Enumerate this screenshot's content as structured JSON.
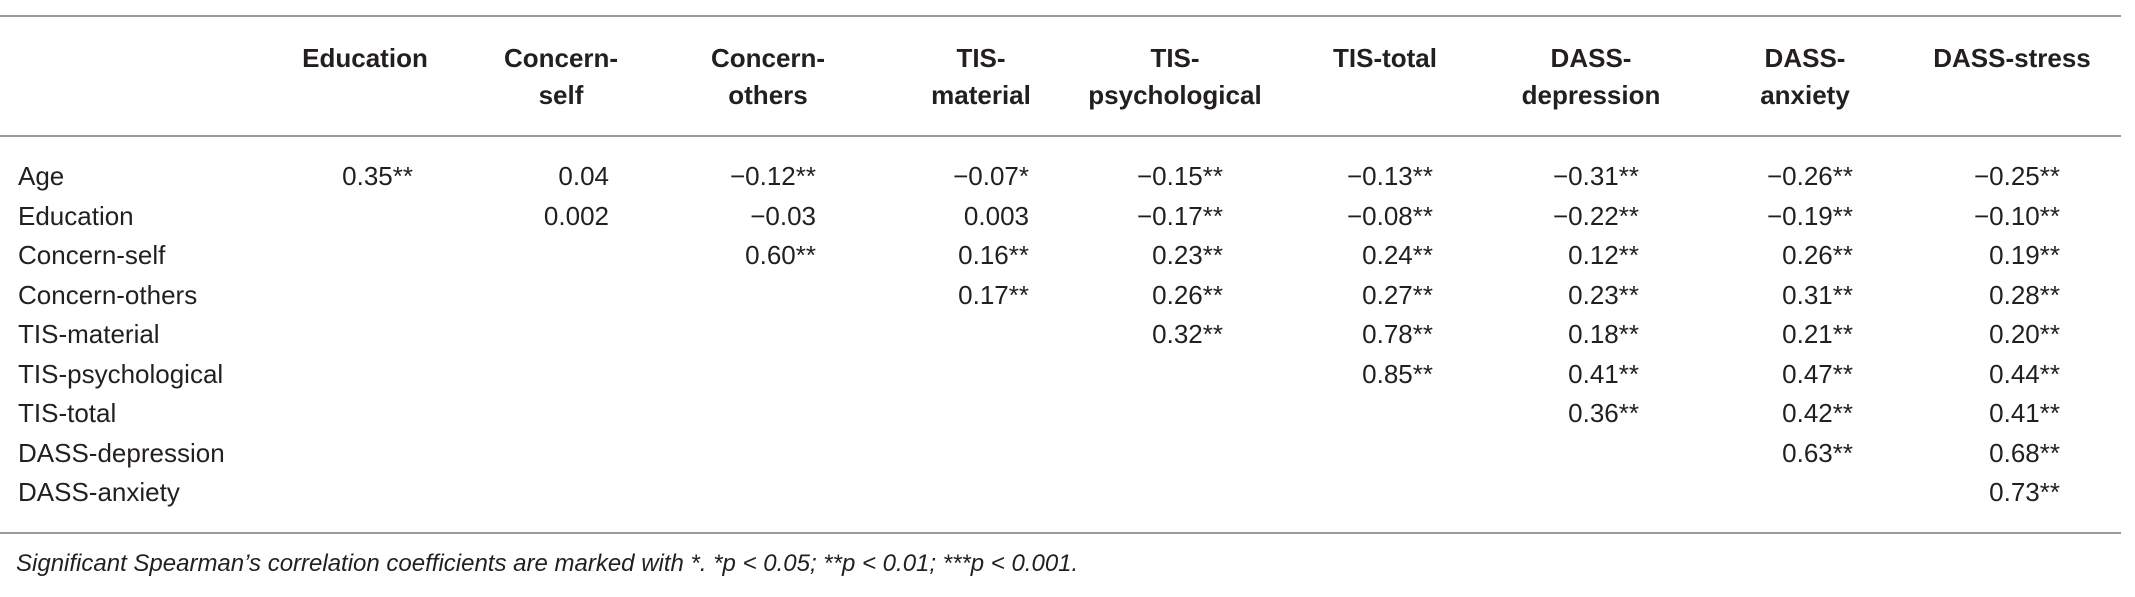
{
  "table": {
    "columns": [
      [
        "Education"
      ],
      [
        "Concern-",
        "self"
      ],
      [
        "Concern-",
        "others"
      ],
      [
        "TIS-",
        "material"
      ],
      [
        "TIS-",
        "psychological"
      ],
      [
        "TIS-total"
      ],
      [
        "DASS-",
        "depression"
      ],
      [
        "DASS-",
        "anxiety"
      ],
      [
        "DASS-stress"
      ]
    ],
    "rows": [
      {
        "label": "Age",
        "cells": [
          "0.35**",
          "0.04",
          "−0.12**",
          "−0.07*",
          "−0.15**",
          "−0.13**",
          "−0.31**",
          "−0.26**",
          "−0.25**"
        ]
      },
      {
        "label": "Education",
        "cells": [
          "0.002",
          "−0.03",
          "0.003",
          "−0.17**",
          "−0.08**",
          "−0.22**",
          "−0.19**",
          "−0.10**"
        ]
      },
      {
        "label": "Concern-self",
        "cells": [
          "0.60**",
          "0.16**",
          "0.23**",
          "0.24**",
          "0.12**",
          "0.26**",
          "0.19**"
        ]
      },
      {
        "label": "Concern-others",
        "cells": [
          "0.17**",
          "0.26**",
          "0.27**",
          "0.23**",
          "0.31**",
          "0.28**"
        ]
      },
      {
        "label": "TIS-material",
        "cells": [
          "0.32**",
          "0.78**",
          "0.18**",
          "0.21**",
          "0.20**"
        ]
      },
      {
        "label": "TIS-psychological",
        "cells": [
          "0.85**",
          "0.41**",
          "0.47**",
          "0.44**"
        ]
      },
      {
        "label": "TIS-total",
        "cells": [
          "0.36**",
          "0.42**",
          "0.41**"
        ]
      },
      {
        "label": "DASS-depression",
        "cells": [
          "0.63**",
          "0.68**"
        ]
      },
      {
        "label": "DASS-anxiety",
        "cells": [
          "0.73**"
        ]
      }
    ],
    "note": "Significant Spearman’s correlation coefficients are marked with *. *p < 0.05; **p < 0.01; ***p < 0.001."
  }
}
